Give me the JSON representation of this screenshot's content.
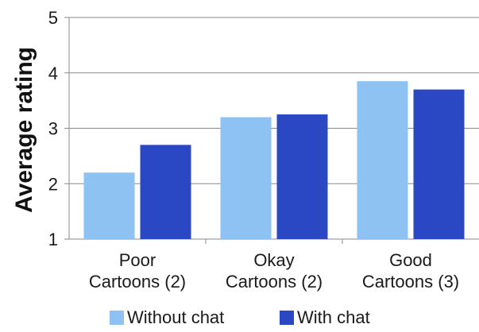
{
  "chart_data": {
    "type": "bar",
    "title": "",
    "xlabel": "",
    "ylabel": "Average rating",
    "ylim": [
      1,
      5
    ],
    "yticks": [
      "1",
      "2",
      "3",
      "4",
      "5"
    ],
    "grid": true,
    "legend_position": "bottom",
    "categories": [
      [
        "Poor",
        "Cartoons (2)"
      ],
      [
        "Okay",
        "Cartoons (2)"
      ],
      [
        "Good",
        "Cartoons (3)"
      ]
    ],
    "series": [
      {
        "name": "Without chat",
        "values": [
          2.2,
          3.2,
          3.85
        ],
        "color": "#8ec2f2"
      },
      {
        "name": "With chat",
        "values": [
          2.7,
          3.25,
          3.7
        ],
        "color": "#2a47c4"
      }
    ]
  }
}
